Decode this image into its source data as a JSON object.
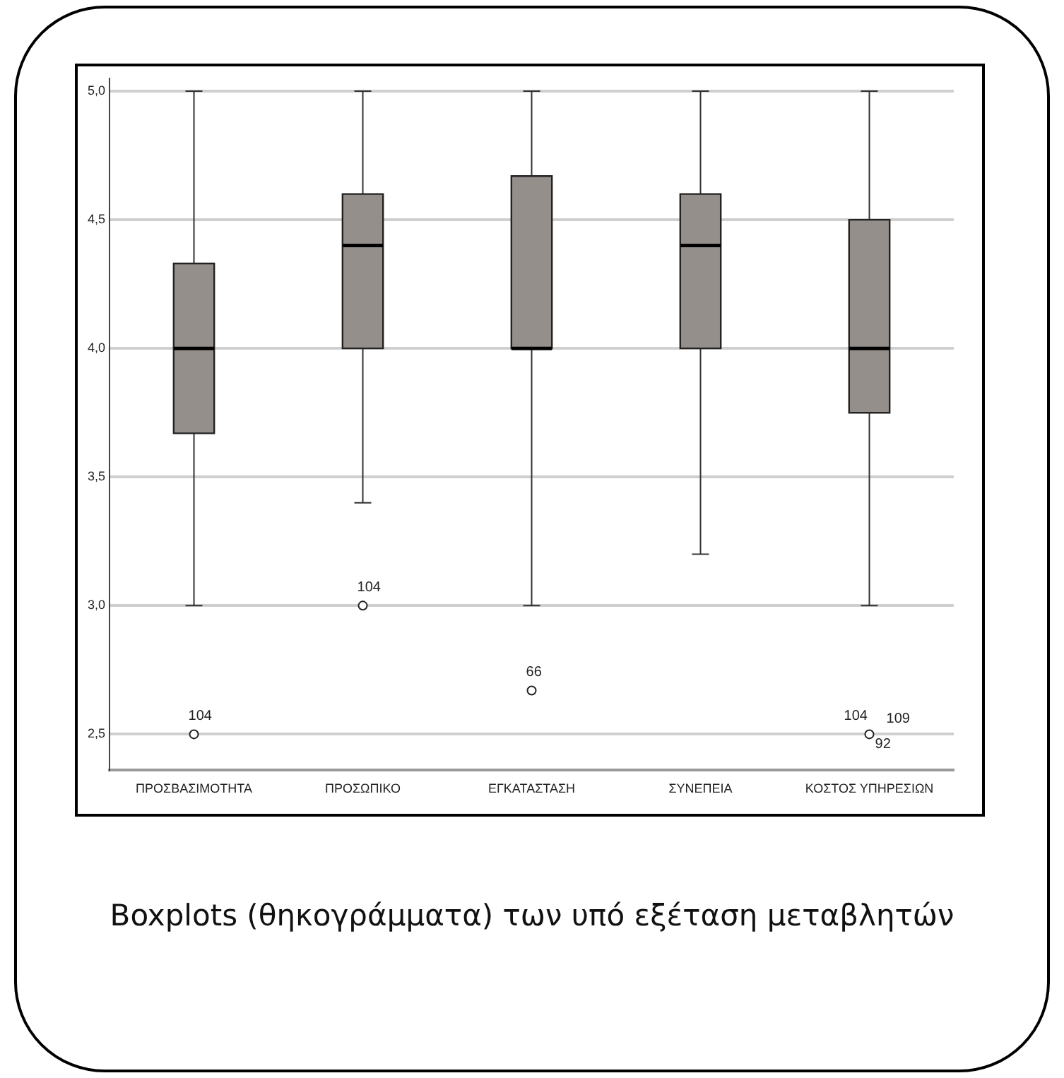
{
  "chart_data": {
    "type": "box",
    "categories": [
      "ΠΡΟΣΒΑΣΙΜΟΤΗΤΑ",
      "ΠΡΟΣΩΠΙΚΟ",
      "ΕΓΚΑΤΑΣΤΑΣΗ",
      "ΣΥΝΕΠΕΙΑ",
      "ΚΟΣΤΟΣ ΥΠΗΡΕΣΙΩΝ"
    ],
    "color": "#958f8c",
    "boxes": [
      {
        "low": 3.0,
        "q1": 3.67,
        "median": 4.0,
        "q3": 4.33,
        "high": 5.0,
        "outliers": [
          2.5
        ]
      },
      {
        "low": 3.4,
        "q1": 4.0,
        "median": 4.4,
        "q3": 4.6,
        "high": 5.0,
        "outliers": [
          3.0
        ]
      },
      {
        "low": 3.0,
        "q1": 4.0,
        "median": 4.0,
        "q3": 4.67,
        "high": 5.0,
        "outliers": [
          2.67
        ]
      },
      {
        "low": 3.2,
        "q1": 4.0,
        "median": 4.4,
        "q3": 4.6,
        "high": 5.0
      },
      {
        "low": 3.0,
        "q1": 3.75,
        "median": 4.0,
        "q3": 4.5,
        "high": 5.0,
        "outliers": [
          2.5
        ]
      }
    ],
    "ylim": [
      2.36,
      5.05
    ],
    "yticks": [
      {
        "value": 2.5,
        "label": "2,5"
      },
      {
        "value": 3.0,
        "label": "3,0"
      },
      {
        "value": 3.5,
        "label": "3,5"
      },
      {
        "value": 4.0,
        "label": "4,0"
      },
      {
        "value": 4.5,
        "label": "4,5"
      },
      {
        "value": 5.0,
        "label": "5,0"
      }
    ],
    "grid": "y",
    "legend": false,
    "annotations": [
      "104",
      "104",
      "66",
      "104",
      "109",
      "92",
      "Boxplots (θηκογράμματα) των υπό εξέταση μεταβλητών"
    ]
  }
}
